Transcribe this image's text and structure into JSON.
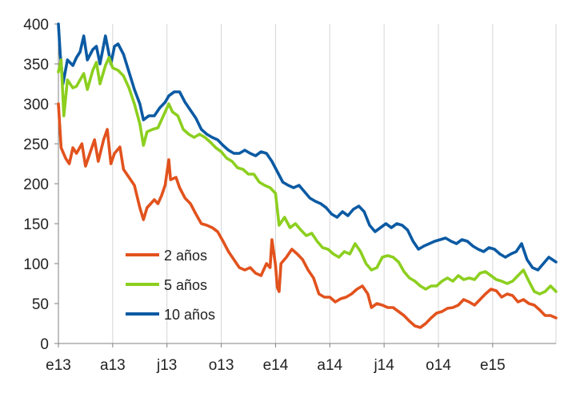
{
  "chart_data": {
    "type": "line",
    "title": "",
    "xlabel": "",
    "ylabel": "",
    "ylim": [
      0,
      400
    ],
    "yticks": [
      0,
      50,
      100,
      150,
      200,
      250,
      300,
      350,
      400
    ],
    "ytick_labels": [
      "0",
      "50",
      "100",
      "150",
      "200",
      "250",
      "300",
      "350",
      "400"
    ],
    "xticks": [
      0,
      3,
      6,
      9,
      12,
      15,
      18,
      21,
      24
    ],
    "xtick_labels": [
      "e13",
      "a13",
      "j13",
      "o13",
      "e14",
      "a14",
      "j14",
      "o14",
      "e15"
    ],
    "xlim": [
      0,
      27.5
    ],
    "grid": "vertical",
    "legend_position": "center-left",
    "series": [
      {
        "name": "2 años",
        "color": "#e2521d",
        "points": [
          [
            0,
            300
          ],
          [
            0.15,
            245
          ],
          [
            0.4,
            232
          ],
          [
            0.6,
            225
          ],
          [
            0.8,
            245
          ],
          [
            1,
            238
          ],
          [
            1.3,
            250
          ],
          [
            1.5,
            222
          ],
          [
            1.8,
            242
          ],
          [
            2,
            255
          ],
          [
            2.2,
            228
          ],
          [
            2.5,
            255
          ],
          [
            2.7,
            268
          ],
          [
            2.9,
            225
          ],
          [
            3.1,
            238
          ],
          [
            3.4,
            246
          ],
          [
            3.6,
            218
          ],
          [
            3.9,
            208
          ],
          [
            4.2,
            198
          ],
          [
            4.5,
            170
          ],
          [
            4.7,
            155
          ],
          [
            4.9,
            170
          ],
          [
            5.1,
            175
          ],
          [
            5.3,
            180
          ],
          [
            5.5,
            175
          ],
          [
            5.7,
            185
          ],
          [
            5.9,
            198
          ],
          [
            6.1,
            230
          ],
          [
            6.2,
            205
          ],
          [
            6.5,
            208
          ],
          [
            6.7,
            195
          ],
          [
            7,
            182
          ],
          [
            7.3,
            175
          ],
          [
            7.6,
            162
          ],
          [
            7.9,
            150
          ],
          [
            8.2,
            148
          ],
          [
            8.5,
            145
          ],
          [
            8.8,
            140
          ],
          [
            9.1,
            128
          ],
          [
            9.4,
            115
          ],
          [
            9.7,
            105
          ],
          [
            10,
            95
          ],
          [
            10.3,
            92
          ],
          [
            10.6,
            95
          ],
          [
            10.9,
            88
          ],
          [
            11.2,
            85
          ],
          [
            11.5,
            100
          ],
          [
            11.7,
            95
          ],
          [
            11.8,
            130
          ],
          [
            12,
            98
          ],
          [
            12.1,
            70
          ],
          [
            12.2,
            65
          ],
          [
            12.3,
            100
          ],
          [
            12.6,
            108
          ],
          [
            12.9,
            118
          ],
          [
            13.2,
            112
          ],
          [
            13.5,
            105
          ],
          [
            13.8,
            92
          ],
          [
            14.1,
            82
          ],
          [
            14.4,
            62
          ],
          [
            14.7,
            58
          ],
          [
            15,
            58
          ],
          [
            15.3,
            52
          ],
          [
            15.6,
            56
          ],
          [
            15.9,
            58
          ],
          [
            16.2,
            62
          ],
          [
            16.5,
            68
          ],
          [
            16.8,
            72
          ],
          [
            17.1,
            62
          ],
          [
            17.3,
            45
          ],
          [
            17.6,
            50
          ],
          [
            17.9,
            48
          ],
          [
            18.2,
            45
          ],
          [
            18.5,
            45
          ],
          [
            18.8,
            40
          ],
          [
            19.1,
            35
          ],
          [
            19.4,
            28
          ],
          [
            19.7,
            22
          ],
          [
            20,
            20
          ],
          [
            20.3,
            25
          ],
          [
            20.6,
            32
          ],
          [
            20.9,
            38
          ],
          [
            21.2,
            40
          ],
          [
            21.5,
            44
          ],
          [
            21.8,
            45
          ],
          [
            22.1,
            48
          ],
          [
            22.4,
            55
          ],
          [
            22.7,
            52
          ],
          [
            23,
            48
          ],
          [
            23.3,
            55
          ],
          [
            23.6,
            62
          ],
          [
            23.9,
            68
          ],
          [
            24.2,
            66
          ],
          [
            24.5,
            58
          ],
          [
            24.8,
            62
          ],
          [
            25.1,
            60
          ],
          [
            25.4,
            52
          ],
          [
            25.7,
            55
          ],
          [
            26,
            50
          ],
          [
            26.3,
            48
          ],
          [
            26.6,
            42
          ],
          [
            26.9,
            35
          ],
          [
            27.2,
            35
          ],
          [
            27.5,
            32
          ]
        ]
      },
      {
        "name": "5 años",
        "color": "#8ccf1f",
        "points": [
          [
            0,
            340
          ],
          [
            0.15,
            355
          ],
          [
            0.3,
            285
          ],
          [
            0.5,
            330
          ],
          [
            0.8,
            320
          ],
          [
            1,
            322
          ],
          [
            1.2,
            330
          ],
          [
            1.4,
            338
          ],
          [
            1.6,
            318
          ],
          [
            1.9,
            342
          ],
          [
            2.1,
            352
          ],
          [
            2.3,
            325
          ],
          [
            2.6,
            348
          ],
          [
            2.8,
            358
          ],
          [
            3,
            345
          ],
          [
            3.3,
            342
          ],
          [
            3.6,
            335
          ],
          [
            3.9,
            320
          ],
          [
            4.2,
            300
          ],
          [
            4.5,
            275
          ],
          [
            4.7,
            248
          ],
          [
            4.9,
            265
          ],
          [
            5.2,
            268
          ],
          [
            5.5,
            270
          ],
          [
            5.8,
            285
          ],
          [
            6.1,
            300
          ],
          [
            6.3,
            290
          ],
          [
            6.6,
            285
          ],
          [
            6.9,
            268
          ],
          [
            7.2,
            262
          ],
          [
            7.5,
            258
          ],
          [
            7.8,
            262
          ],
          [
            8.1,
            258
          ],
          [
            8.4,
            252
          ],
          [
            8.7,
            245
          ],
          [
            9,
            240
          ],
          [
            9.3,
            232
          ],
          [
            9.6,
            228
          ],
          [
            9.9,
            220
          ],
          [
            10.2,
            218
          ],
          [
            10.5,
            212
          ],
          [
            10.8,
            212
          ],
          [
            11.1,
            202
          ],
          [
            11.4,
            198
          ],
          [
            11.7,
            195
          ],
          [
            12,
            188
          ],
          [
            12.2,
            148
          ],
          [
            12.5,
            158
          ],
          [
            12.8,
            145
          ],
          [
            13.1,
            150
          ],
          [
            13.4,
            142
          ],
          [
            13.7,
            135
          ],
          [
            14,
            138
          ],
          [
            14.3,
            128
          ],
          [
            14.6,
            120
          ],
          [
            14.9,
            118
          ],
          [
            15.2,
            112
          ],
          [
            15.5,
            108
          ],
          [
            15.8,
            115
          ],
          [
            16.1,
            112
          ],
          [
            16.4,
            125
          ],
          [
            16.7,
            115
          ],
          [
            17,
            100
          ],
          [
            17.3,
            92
          ],
          [
            17.6,
            95
          ],
          [
            17.9,
            108
          ],
          [
            18.2,
            110
          ],
          [
            18.5,
            108
          ],
          [
            18.8,
            102
          ],
          [
            19.1,
            90
          ],
          [
            19.4,
            82
          ],
          [
            19.7,
            78
          ],
          [
            20,
            72
          ],
          [
            20.3,
            68
          ],
          [
            20.6,
            72
          ],
          [
            20.9,
            72
          ],
          [
            21.2,
            78
          ],
          [
            21.5,
            82
          ],
          [
            21.8,
            78
          ],
          [
            22.1,
            85
          ],
          [
            22.4,
            80
          ],
          [
            22.7,
            82
          ],
          [
            23,
            80
          ],
          [
            23.3,
            88
          ],
          [
            23.6,
            90
          ],
          [
            23.9,
            85
          ],
          [
            24.2,
            80
          ],
          [
            24.5,
            78
          ],
          [
            24.8,
            75
          ],
          [
            25.1,
            78
          ],
          [
            25.4,
            85
          ],
          [
            25.7,
            92
          ],
          [
            26,
            78
          ],
          [
            26.3,
            65
          ],
          [
            26.6,
            62
          ],
          [
            26.9,
            65
          ],
          [
            27.2,
            72
          ],
          [
            27.5,
            65
          ]
        ]
      },
      {
        "name": "10 años",
        "color": "#0b5aa3",
        "points": [
          [
            0,
            400
          ],
          [
            0.1,
            362
          ],
          [
            0.25,
            325
          ],
          [
            0.5,
            355
          ],
          [
            0.8,
            348
          ],
          [
            1,
            358
          ],
          [
            1.2,
            365
          ],
          [
            1.4,
            385
          ],
          [
            1.6,
            355
          ],
          [
            1.9,
            368
          ],
          [
            2.1,
            372
          ],
          [
            2.3,
            350
          ],
          [
            2.6,
            385
          ],
          [
            2.9,
            350
          ],
          [
            3.1,
            372
          ],
          [
            3.3,
            375
          ],
          [
            3.6,
            362
          ],
          [
            3.9,
            340
          ],
          [
            4.2,
            318
          ],
          [
            4.5,
            300
          ],
          [
            4.7,
            280
          ],
          [
            5,
            285
          ],
          [
            5.3,
            285
          ],
          [
            5.6,
            295
          ],
          [
            5.9,
            302
          ],
          [
            6.1,
            310
          ],
          [
            6.4,
            315
          ],
          [
            6.7,
            315
          ],
          [
            7,
            302
          ],
          [
            7.3,
            292
          ],
          [
            7.6,
            282
          ],
          [
            7.9,
            268
          ],
          [
            8.2,
            262
          ],
          [
            8.5,
            258
          ],
          [
            8.8,
            255
          ],
          [
            9.1,
            248
          ],
          [
            9.4,
            242
          ],
          [
            9.7,
            238
          ],
          [
            10,
            238
          ],
          [
            10.3,
            242
          ],
          [
            10.6,
            238
          ],
          [
            10.9,
            235
          ],
          [
            11.2,
            240
          ],
          [
            11.5,
            238
          ],
          [
            11.8,
            228
          ],
          [
            12.1,
            215
          ],
          [
            12.4,
            202
          ],
          [
            12.7,
            198
          ],
          [
            13,
            195
          ],
          [
            13.3,
            198
          ],
          [
            13.6,
            190
          ],
          [
            13.9,
            182
          ],
          [
            14.2,
            178
          ],
          [
            14.5,
            175
          ],
          [
            14.8,
            170
          ],
          [
            15.1,
            162
          ],
          [
            15.4,
            158
          ],
          [
            15.7,
            165
          ],
          [
            16,
            160
          ],
          [
            16.3,
            168
          ],
          [
            16.6,
            172
          ],
          [
            16.9,
            165
          ],
          [
            17.2,
            148
          ],
          [
            17.5,
            140
          ],
          [
            17.8,
            145
          ],
          [
            18.1,
            150
          ],
          [
            18.4,
            145
          ],
          [
            18.7,
            150
          ],
          [
            19,
            148
          ],
          [
            19.3,
            142
          ],
          [
            19.6,
            128
          ],
          [
            19.9,
            118
          ],
          [
            20.2,
            122
          ],
          [
            20.5,
            125
          ],
          [
            20.8,
            128
          ],
          [
            21.1,
            130
          ],
          [
            21.4,
            132
          ],
          [
            21.7,
            128
          ],
          [
            22,
            125
          ],
          [
            22.3,
            130
          ],
          [
            22.6,
            128
          ],
          [
            22.9,
            122
          ],
          [
            23.2,
            118
          ],
          [
            23.5,
            115
          ],
          [
            23.8,
            120
          ],
          [
            24.1,
            118
          ],
          [
            24.4,
            112
          ],
          [
            24.7,
            108
          ],
          [
            25,
            112
          ],
          [
            25.3,
            115
          ],
          [
            25.6,
            125
          ],
          [
            25.9,
            105
          ],
          [
            26.2,
            95
          ],
          [
            26.5,
            92
          ],
          [
            26.8,
            100
          ],
          [
            27.1,
            108
          ],
          [
            27.5,
            102
          ]
        ]
      }
    ]
  }
}
